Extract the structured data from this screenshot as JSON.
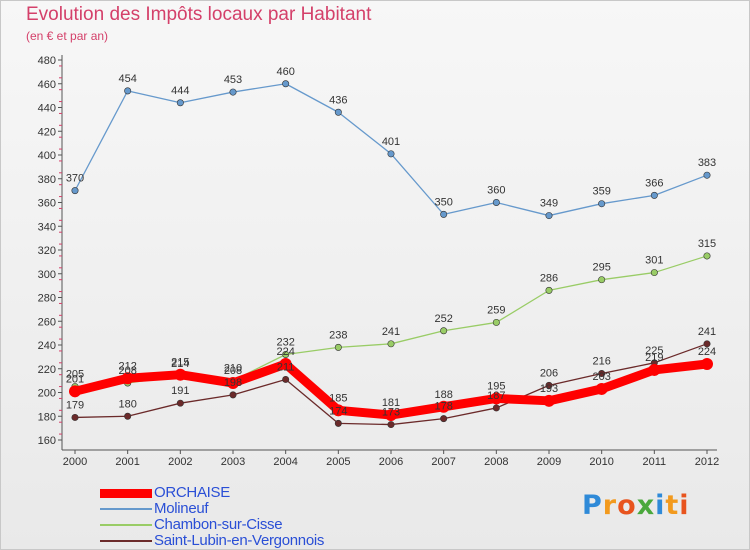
{
  "title": "Evolution des Impôts locaux par Habitant",
  "subtitle": "(en € et par an)",
  "logo": {
    "letters": [
      "P",
      "r",
      "o",
      "x",
      "i",
      "t",
      "i"
    ],
    "colors": [
      "#2f8ad8",
      "#f29a1e",
      "#e8541e",
      "#4aa83c",
      "#2f8ad8",
      "#f29a1e",
      "#e8541e"
    ]
  },
  "chart_data": {
    "type": "line",
    "title": "Evolution des Impôts locaux par Habitant",
    "subtitle": "(en € et par an)",
    "x": [
      "2000",
      "2001",
      "2002",
      "2003",
      "2004",
      "2005",
      "2006",
      "2007",
      "2008",
      "2009",
      "2010",
      "2011",
      "2012"
    ],
    "ylim": [
      160,
      480
    ],
    "yticks": [
      160,
      180,
      200,
      220,
      240,
      260,
      280,
      300,
      320,
      340,
      360,
      380,
      400,
      420,
      440,
      460,
      480
    ],
    "grid": false,
    "legend": "bottom-left",
    "series": [
      {
        "name": "ORCHAISE",
        "color": "#ff0000",
        "values": [
          201,
          212,
          215,
          208,
          224,
          185,
          181,
          188,
          195,
          193,
          203,
          219,
          224
        ]
      },
      {
        "name": "Molineuf",
        "color": "#6699cc",
        "values": [
          370,
          454,
          444,
          453,
          460,
          436,
          401,
          350,
          360,
          349,
          359,
          366,
          383
        ]
      },
      {
        "name": "Chambon-sur-Cisse",
        "color": "#99cc66",
        "values": [
          205,
          208,
          214,
          210,
          232,
          238,
          241,
          252,
          259,
          286,
          295,
          301,
          315
        ]
      },
      {
        "name": "Saint-Lubin-en-Vergonnois",
        "color": "#6b2a2a",
        "values": [
          179,
          180,
          191,
          198,
          211,
          174,
          173,
          178,
          187,
          206,
          216,
          225,
          241
        ]
      }
    ]
  }
}
